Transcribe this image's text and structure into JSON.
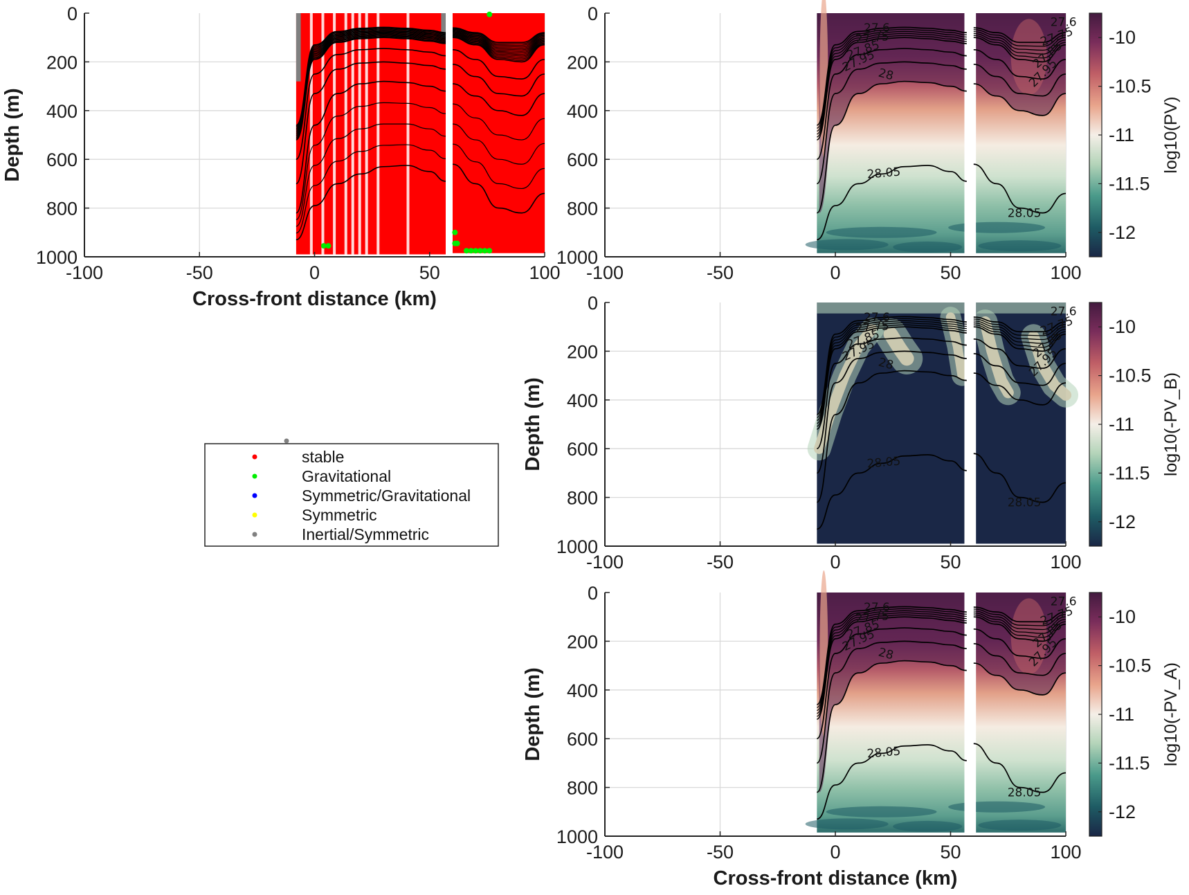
{
  "chart_data": [
    {
      "type": "scatter",
      "panel": "instability-classification",
      "xlabel": "Cross-front distance (km)",
      "ylabel": "Depth (m)",
      "xlim": [
        -100,
        100
      ],
      "ylim": [
        0,
        1000
      ],
      "y_reversed": true,
      "xticks": [
        -100,
        -50,
        0,
        50,
        100
      ],
      "yticks": [
        0,
        200,
        400,
        600,
        800,
        1000
      ],
      "grid": true,
      "section_gap_km": [
        57,
        60
      ],
      "data_extent_km": [
        -8,
        100
      ],
      "legend_position": "lower-left",
      "series": [
        {
          "name": "stable",
          "color": "#ff0000",
          "marker": "dot",
          "coverage": "most of section"
        },
        {
          "name": "Gravitational",
          "color": "#00ee00",
          "marker": "dot",
          "points": [
            [
              4,
              955
            ],
            [
              6,
              955
            ],
            [
              61,
              900
            ],
            [
              61,
              945
            ],
            [
              62,
              945
            ],
            [
              66,
              975
            ],
            [
              68,
              975
            ],
            [
              70,
              975
            ],
            [
              72,
              975
            ],
            [
              74,
              975
            ],
            [
              76,
              975
            ],
            [
              76,
              5
            ]
          ]
        },
        {
          "name": "Symmetric/Gravitational",
          "color": "#0000ff",
          "marker": "dot",
          "points": []
        },
        {
          "name": "Symmetric",
          "color": "#ffff00",
          "marker": "dot",
          "points": []
        },
        {
          "name": "Inertial/Symmetric",
          "color": "#808080",
          "marker": "dot",
          "regions": [
            {
              "x": [
                -8,
                -6
              ],
              "depth": [
                0,
                280
              ]
            },
            {
              "x": [
                55,
                57
              ],
              "depth": [
                0,
                100
              ]
            }
          ]
        }
      ]
    },
    {
      "type": "heatmap",
      "panel": "PV",
      "xlabel": "",
      "ylabel": "",
      "xlim": [
        -100,
        100
      ],
      "ylim": [
        0,
        1000
      ],
      "colorbar_label": "log10(PV)",
      "colorbar_ticks": [
        -10,
        -10.5,
        -11,
        -11.5,
        -12
      ],
      "colorbar_range": [
        -12.25,
        -9.75
      ],
      "contour_labels": [
        "27.6",
        "27.75",
        "27.85",
        "27.95",
        "28",
        "28.05"
      ]
    },
    {
      "type": "heatmap",
      "panel": "PV_B",
      "xlabel": "",
      "ylabel": "Depth (m)",
      "xlim": [
        -100,
        100
      ],
      "ylim": [
        0,
        1000
      ],
      "colorbar_label": "log10(-PV_B)",
      "colorbar_ticks": [
        -10,
        -10.5,
        -11,
        -11.5,
        -12
      ],
      "colorbar_range": [
        -12.25,
        -9.75
      ],
      "contour_labels": [
        "27.6",
        "27.75",
        "27.85",
        "27.95",
        "28",
        "28.05"
      ]
    },
    {
      "type": "heatmap",
      "panel": "PV_A",
      "xlabel": "Cross-front distance (km)",
      "ylabel": "Depth (m)",
      "xlim": [
        -100,
        100
      ],
      "ylim": [
        0,
        1000
      ],
      "colorbar_label": "log10(-PV_A)",
      "colorbar_ticks": [
        -10,
        -10.5,
        -11,
        -11.5,
        -12
      ],
      "colorbar_range": [
        -12.25,
        -9.75
      ],
      "contour_labels": [
        "27.6",
        "27.75",
        "27.85",
        "27.95",
        "28",
        "28.05"
      ]
    }
  ],
  "isopycnals": {
    "segment_1_x": [
      -8,
      0,
      10,
      20,
      30,
      40,
      50,
      57
    ],
    "segment_2_x": [
      60,
      70,
      80,
      90,
      100
    ],
    "lines": [
      {
        "level": "28.05",
        "s1": [
          930,
          790,
          700,
          660,
          630,
          625,
          650,
          690
        ],
        "s2": [
          620,
          700,
          800,
          820,
          740
        ]
      },
      {
        "level": "28",
        "s1": [
          820,
          460,
          330,
          290,
          280,
          285,
          300,
          320
        ],
        "s2": [
          290,
          340,
          400,
          420,
          330
        ]
      },
      {
        "level": "27.95",
        "s1": [
          700,
          330,
          230,
          205,
          200,
          205,
          215,
          230
        ],
        "s2": [
          210,
          260,
          330,
          340,
          250
        ]
      },
      {
        "level": "27.85",
        "s1": [
          600,
          250,
          170,
          150,
          145,
          150,
          160,
          175
        ],
        "s2": [
          150,
          190,
          260,
          270,
          190
        ]
      },
      {
        "level": "27.75",
        "s1": [
          520,
          190,
          120,
          105,
          100,
          105,
          115,
          125
        ],
        "s2": [
          100,
          130,
          190,
          200,
          130
        ]
      },
      {
        "level": "27.6",
        "s1": [
          460,
          130,
          75,
          62,
          58,
          62,
          70,
          80
        ],
        "s2": [
          60,
          80,
          120,
          120,
          80
        ]
      }
    ]
  },
  "legend": {
    "entries": [
      {
        "label": "stable",
        "color": "#ff0000"
      },
      {
        "label": "Gravitational",
        "color": "#00ee00"
      },
      {
        "label": "Symmetric/Gravitational",
        "color": "#0000ff"
      },
      {
        "label": "Symmetric",
        "color": "#ffff00"
      },
      {
        "label": "Inertial/Symmetric",
        "color": "#808080"
      }
    ]
  },
  "colors": {
    "stable": "#ff0000",
    "cmap": [
      "#1a2746",
      "#1e5b64",
      "#4a9a8a",
      "#b4d4b9",
      "#f5efe8",
      "#e9a58c",
      "#c05f66",
      "#7a2d5b",
      "#431a3f"
    ]
  }
}
